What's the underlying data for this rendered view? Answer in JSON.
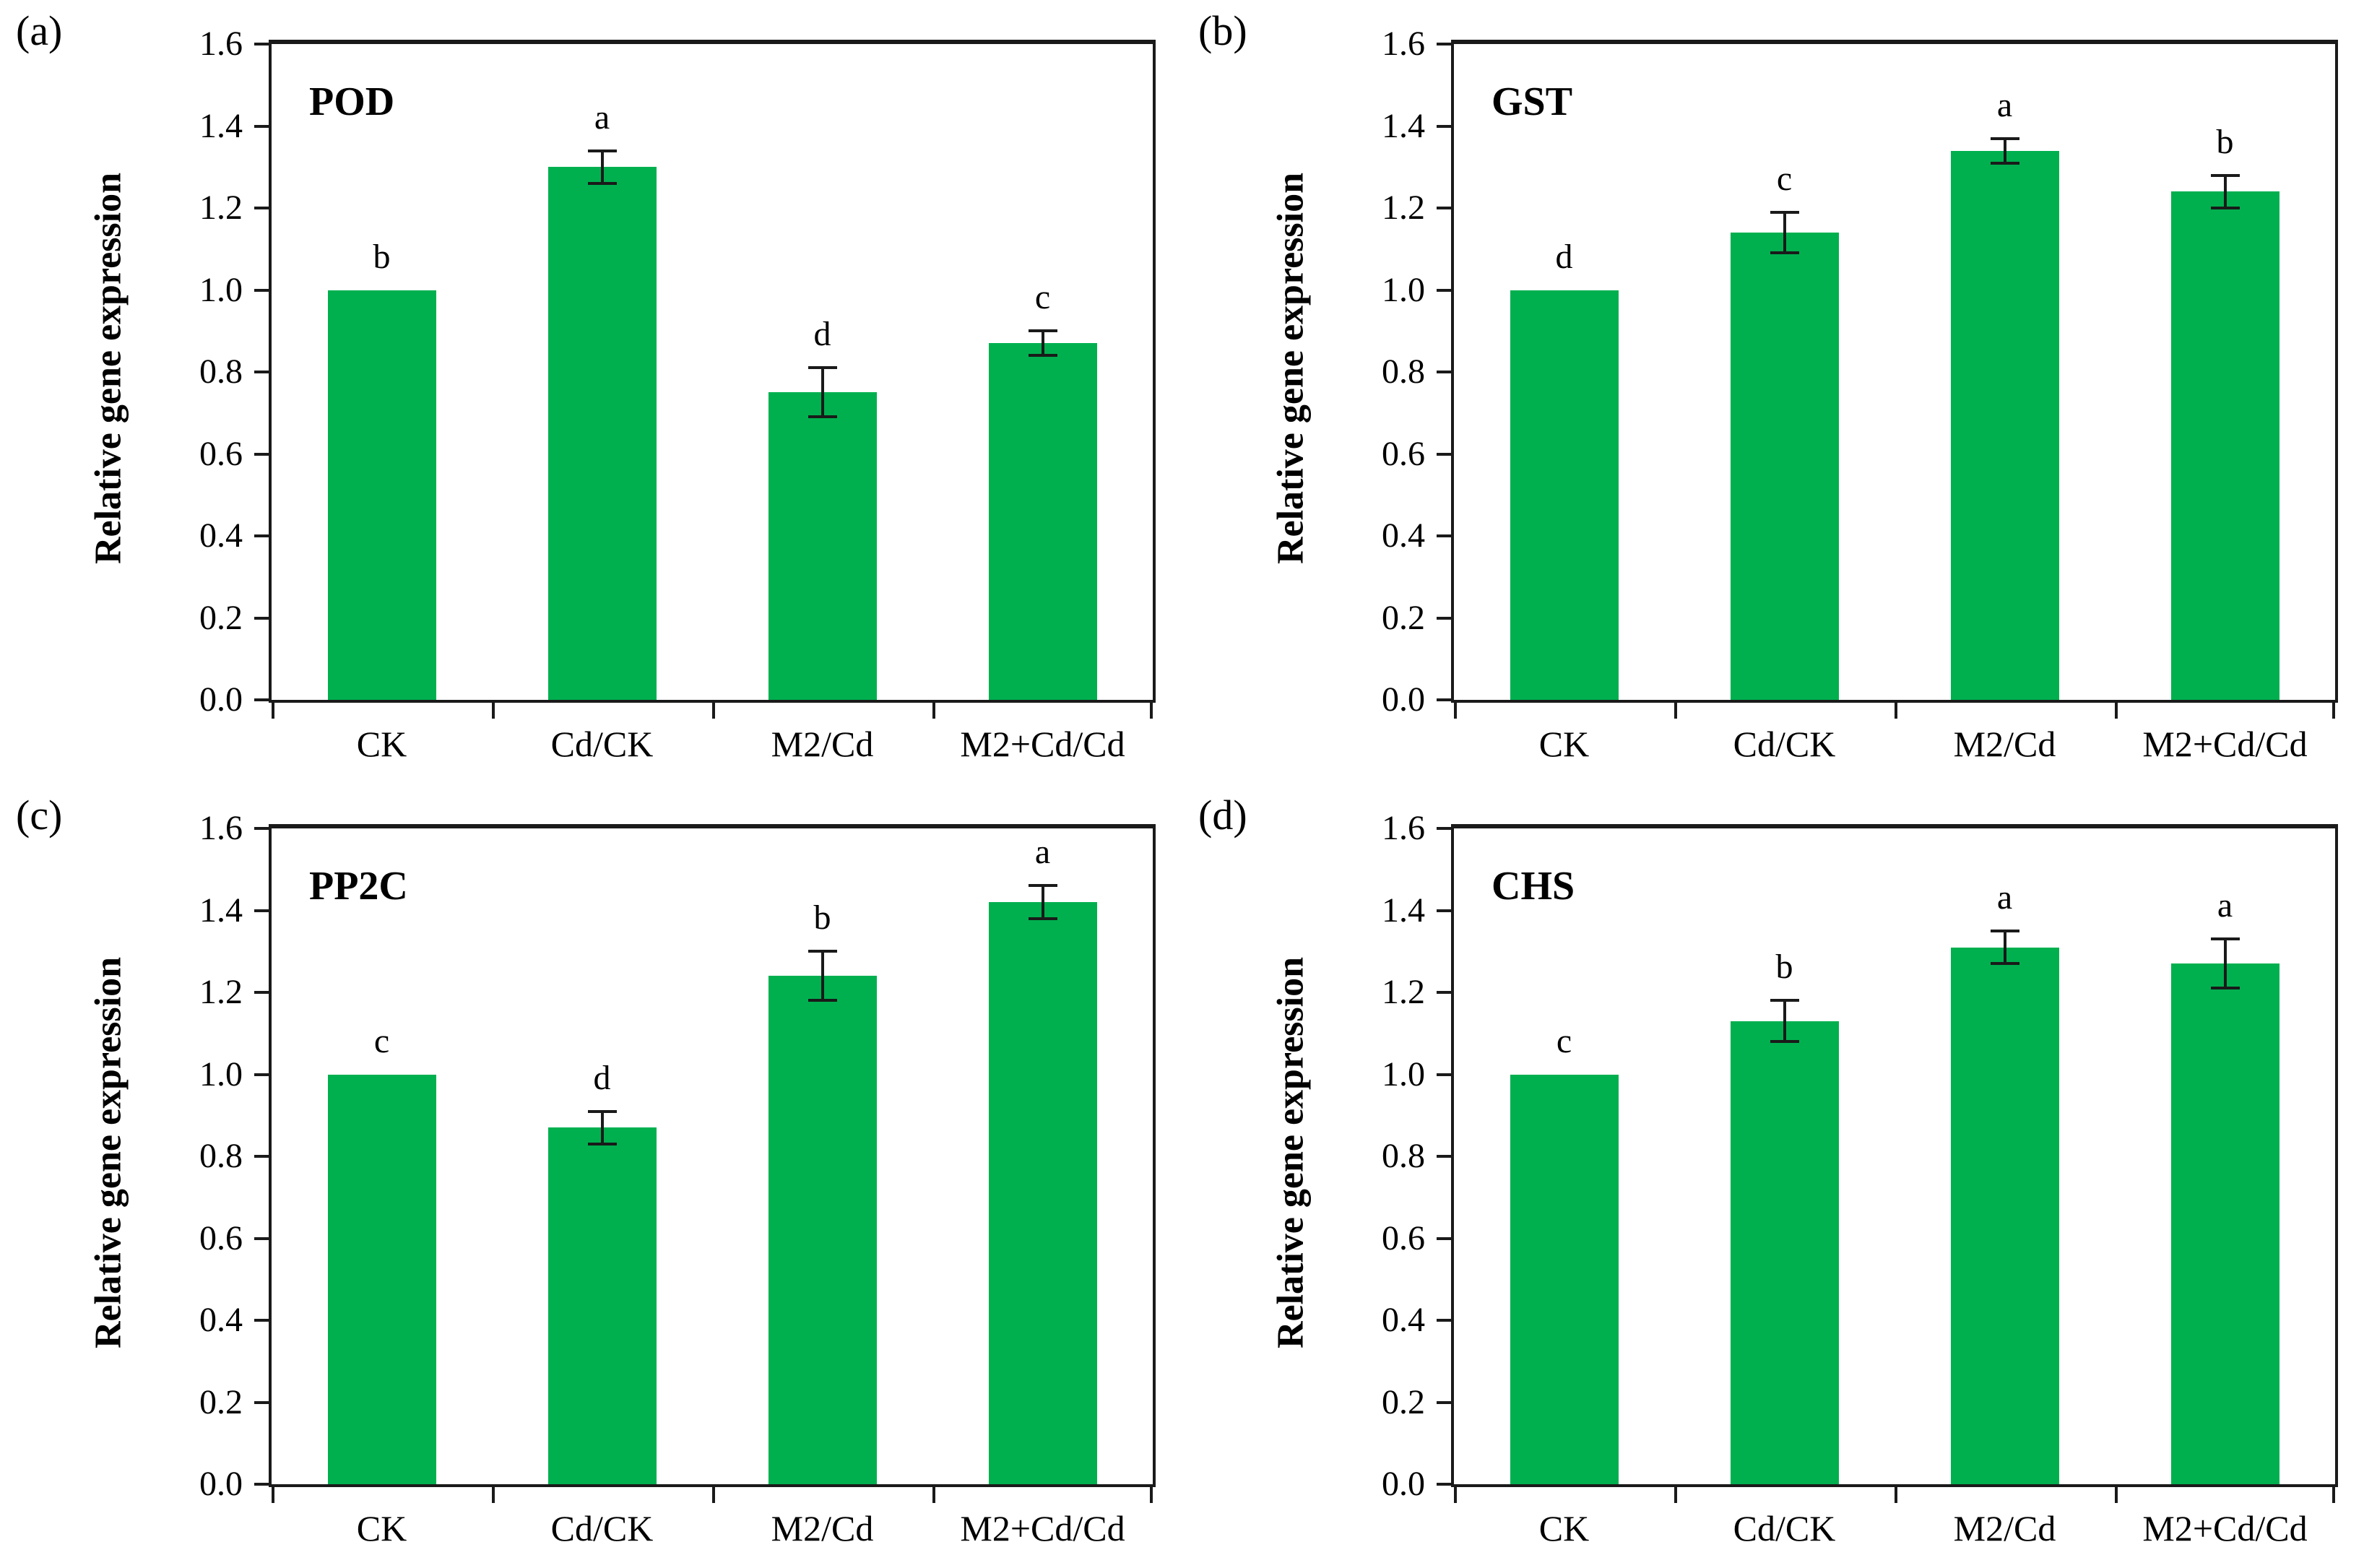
{
  "figure": {
    "background": "#ffffff",
    "bar_color": "#00b04f",
    "axis_color": "#1a1a1a",
    "y_axis_title": "Relative gene expression"
  },
  "chart_data": [
    {
      "type": "bar",
      "panel_label": "(a)",
      "title": "POD",
      "categories": [
        "CK",
        "Cd/CK",
        "M2/Cd",
        "M2+Cd/Cd"
      ],
      "values": [
        1.0,
        1.3,
        0.75,
        0.87
      ],
      "errors": [
        0,
        0.04,
        0.06,
        0.03
      ],
      "letters": [
        "b",
        "a",
        "d",
        "c"
      ],
      "xlabel": "",
      "ylabel": "Relative gene expression",
      "ylim": [
        0,
        1.6
      ],
      "ytick_step": 0.2,
      "grid": false,
      "legend": "none"
    },
    {
      "type": "bar",
      "panel_label": "(b)",
      "title": "GST",
      "categories": [
        "CK",
        "Cd/CK",
        "M2/Cd",
        "M2+Cd/Cd"
      ],
      "values": [
        1.0,
        1.14,
        1.34,
        1.24
      ],
      "errors": [
        0,
        0.05,
        0.03,
        0.04
      ],
      "letters": [
        "d",
        "c",
        "a",
        "b"
      ],
      "xlabel": "",
      "ylabel": "Relative gene expression",
      "ylim": [
        0,
        1.6
      ],
      "ytick_step": 0.2,
      "grid": false,
      "legend": "none"
    },
    {
      "type": "bar",
      "panel_label": "(c)",
      "title": "PP2C",
      "categories": [
        "CK",
        "Cd/CK",
        "M2/Cd",
        "M2+Cd/Cd"
      ],
      "values": [
        1.0,
        0.87,
        1.24,
        1.42
      ],
      "errors": [
        0,
        0.04,
        0.06,
        0.04
      ],
      "letters": [
        "c",
        "d",
        "b",
        "a"
      ],
      "xlabel": "",
      "ylabel": "Relative gene expression",
      "ylim": [
        0,
        1.6
      ],
      "ytick_step": 0.2,
      "grid": false,
      "legend": "none"
    },
    {
      "type": "bar",
      "panel_label": "(d)",
      "title": "CHS",
      "categories": [
        "CK",
        "Cd/CK",
        "M2/Cd",
        "M2+Cd/Cd"
      ],
      "values": [
        1.0,
        1.13,
        1.31,
        1.27
      ],
      "errors": [
        0,
        0.05,
        0.04,
        0.06
      ],
      "letters": [
        "c",
        "b",
        "a",
        "a"
      ],
      "xlabel": "",
      "ylabel": "Relative gene expression",
      "ylim": [
        0,
        1.6
      ],
      "ytick_step": 0.2,
      "grid": false,
      "legend": "none"
    }
  ]
}
